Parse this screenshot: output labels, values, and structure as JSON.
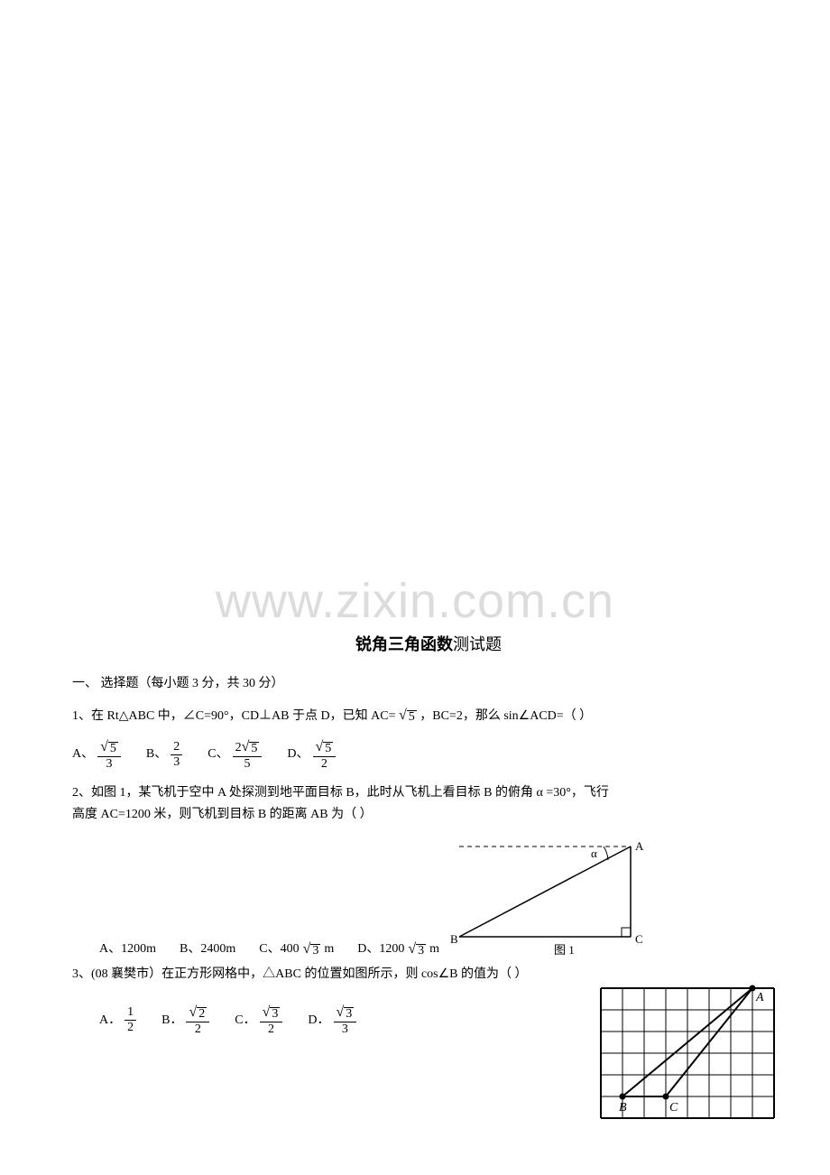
{
  "watermark": "www.zixin.com.cn",
  "title_bold": "锐角三角函数",
  "title_rest": "测试题",
  "section": "一、    选择题（每小题 3 分，共 30 分）",
  "q1": {
    "text_before": "1、在 Rt△ABC 中，∠C=90°，CD⊥AB 于点 D，已知 AC=",
    "ac_sqrt": "5",
    "text_after": " ，BC=2，那么 sin∠ACD=（     ）",
    "optA_pre": "A、",
    "optA_num_sqrt": "5",
    "optA_den": "3",
    "optB_pre": "B、",
    "optB_num": "2",
    "optB_den": "3",
    "optC_pre": "C、",
    "optC_coef": "2",
    "optC_num_sqrt": "5",
    "optC_den": "5",
    "optD_pre": "D、",
    "optD_num_sqrt": "5",
    "optD_den": "2"
  },
  "q2": {
    "line1": "2、如图 1，某飞机于空中 A 处探测到地平面目标 B，此时从飞机上看目标 B 的俯角 α =30°，飞行",
    "line2": "高度 AC=1200 米，则飞机到目标 B 的距离 AB 为（      ）",
    "optA": "A、1200m",
    "optB": "B、2400m",
    "optC_pre": "C、400",
    "optC_sqrt": "3",
    "optC_post": " m",
    "optD_pre": "D、1200",
    "optD_sqrt": "3",
    "optD_post": " m",
    "fig": {
      "labelA": "A",
      "labelB": "B",
      "labelC": "C",
      "labelAlpha": "α",
      "caption": "图 1",
      "dash_color": "#000000",
      "line_color": "#000000"
    }
  },
  "q3": {
    "text": "3、(08 襄樊市）在正方形网格中，△ABC 的位置如图所示，则 cos∠B 的值为（      ）",
    "optA_pre": "A．",
    "optA_num": "1",
    "optA_den": "2",
    "optB_pre": "B．",
    "optB_num_sqrt": "2",
    "optB_den": "2",
    "optC_pre": "C．",
    "optC_num_sqrt": "3",
    "optC_den": "2",
    "optD_pre": "D．",
    "optD_num_sqrt": "3",
    "optD_den": "3",
    "grid": {
      "cols": 8,
      "rows": 6,
      "cell": 24,
      "A_col": 7,
      "A_row": 0,
      "B_col": 1,
      "B_row": 5,
      "C_col": 3,
      "C_row": 5,
      "labelA": "A",
      "labelB": "B",
      "labelC": "C",
      "line_color": "#000000",
      "tri_width": 2
    }
  }
}
